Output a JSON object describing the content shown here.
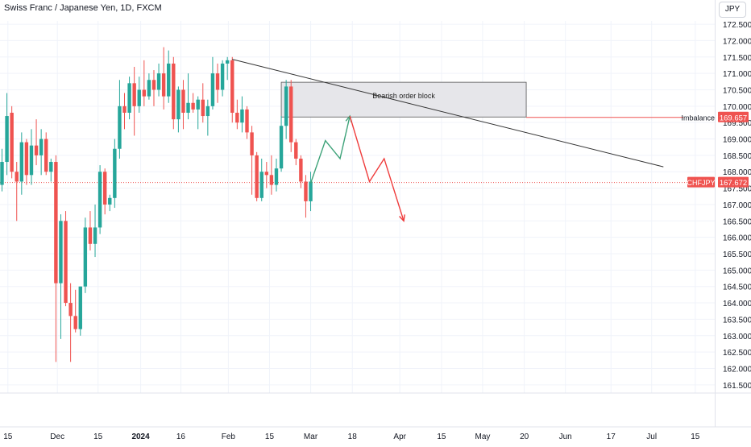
{
  "header": {
    "title": "Swiss Franc / Japanese Yen, 1D, FXCM",
    "unit": "JPY"
  },
  "colors": {
    "up": "#26a69a",
    "down": "#ef5350",
    "grid": "#f0f3fa",
    "axis_text": "#131722",
    "projection_up": "#3fa37a",
    "projection_down": "#ef3b3b",
    "trendline": "#333333",
    "box_fill": "#e6e6ea"
  },
  "chart_data": {
    "type": "candlestick",
    "title": "Swiss Franc / Japanese Yen, 1D, FXCM",
    "symbol": "CHFJPY",
    "y_ticks": [
      "161.500",
      "162.000",
      "162.500",
      "163.000",
      "163.500",
      "164.000",
      "164.500",
      "165.000",
      "165.500",
      "166.000",
      "166.500",
      "167.000",
      "167.500",
      "168.000",
      "168.500",
      "169.000",
      "169.500",
      "170.000",
      "170.500",
      "171.000",
      "171.500",
      "172.000",
      "172.500"
    ],
    "x_ticks": [
      "15",
      "Dec",
      "15",
      "2024",
      "16",
      "Feb",
      "15",
      "Mar",
      "18",
      "Apr",
      "15",
      "May",
      "20",
      "Jun",
      "17",
      "Jul",
      "15"
    ],
    "ylim": [
      161.25,
      172.6
    ],
    "candles": [
      {
        "o": 167.6,
        "h": 168.7,
        "l": 167.4,
        "c": 168.3
      },
      {
        "o": 168.3,
        "h": 170.4,
        "l": 167.9,
        "c": 169.7
      },
      {
        "o": 169.8,
        "h": 170.0,
        "l": 167.8,
        "c": 168.0
      },
      {
        "o": 168.0,
        "h": 168.3,
        "l": 166.5,
        "c": 167.7
      },
      {
        "o": 167.7,
        "h": 169.2,
        "l": 167.3,
        "c": 168.9
      },
      {
        "o": 168.9,
        "h": 169.0,
        "l": 167.6,
        "c": 167.9
      },
      {
        "o": 167.9,
        "h": 169.3,
        "l": 167.6,
        "c": 168.8
      },
      {
        "o": 168.8,
        "h": 169.6,
        "l": 168.2,
        "c": 168.5
      },
      {
        "o": 168.5,
        "h": 169.3,
        "l": 167.9,
        "c": 169.0
      },
      {
        "o": 169.0,
        "h": 169.2,
        "l": 167.9,
        "c": 168.0
      },
      {
        "o": 168.0,
        "h": 168.4,
        "l": 167.7,
        "c": 168.3
      },
      {
        "o": 168.3,
        "h": 168.5,
        "l": 162.2,
        "c": 164.6
      },
      {
        "o": 164.6,
        "h": 166.7,
        "l": 162.9,
        "c": 166.5
      },
      {
        "o": 166.5,
        "h": 166.8,
        "l": 163.9,
        "c": 164.0
      },
      {
        "o": 164.0,
        "h": 164.6,
        "l": 162.2,
        "c": 163.6
      },
      {
        "o": 163.6,
        "h": 164.4,
        "l": 163.1,
        "c": 163.2
      },
      {
        "o": 163.2,
        "h": 164.5,
        "l": 163.0,
        "c": 164.5
      },
      {
        "o": 164.5,
        "h": 166.6,
        "l": 164.3,
        "c": 166.3
      },
      {
        "o": 166.3,
        "h": 166.8,
        "l": 165.6,
        "c": 165.8
      },
      {
        "o": 165.8,
        "h": 167.0,
        "l": 165.4,
        "c": 166.3
      },
      {
        "o": 166.3,
        "h": 168.2,
        "l": 166.1,
        "c": 168.0
      },
      {
        "o": 168.0,
        "h": 168.1,
        "l": 166.7,
        "c": 167.0
      },
      {
        "o": 167.0,
        "h": 167.3,
        "l": 166.8,
        "c": 167.2
      },
      {
        "o": 167.2,
        "h": 169.0,
        "l": 166.9,
        "c": 168.7
      },
      {
        "o": 168.7,
        "h": 170.8,
        "l": 168.4,
        "c": 170.0
      },
      {
        "o": 170.0,
        "h": 170.4,
        "l": 169.3,
        "c": 169.8
      },
      {
        "o": 169.8,
        "h": 170.9,
        "l": 169.6,
        "c": 170.7
      },
      {
        "o": 170.7,
        "h": 171.2,
        "l": 169.1,
        "c": 170.0
      },
      {
        "o": 170.0,
        "h": 170.9,
        "l": 169.8,
        "c": 170.5
      },
      {
        "o": 170.5,
        "h": 171.4,
        "l": 170.0,
        "c": 170.3
      },
      {
        "o": 170.3,
        "h": 171.0,
        "l": 170.2,
        "c": 170.8
      },
      {
        "o": 170.8,
        "h": 171.1,
        "l": 170.0,
        "c": 170.5
      },
      {
        "o": 170.5,
        "h": 171.3,
        "l": 170.3,
        "c": 171.0
      },
      {
        "o": 171.0,
        "h": 171.8,
        "l": 169.9,
        "c": 170.3
      },
      {
        "o": 170.3,
        "h": 171.7,
        "l": 170.1,
        "c": 171.3
      },
      {
        "o": 171.3,
        "h": 171.5,
        "l": 169.3,
        "c": 169.6
      },
      {
        "o": 169.6,
        "h": 170.6,
        "l": 169.2,
        "c": 170.5
      },
      {
        "o": 170.5,
        "h": 170.8,
        "l": 169.3,
        "c": 169.8
      },
      {
        "o": 169.8,
        "h": 171.0,
        "l": 169.6,
        "c": 170.1
      },
      {
        "o": 170.1,
        "h": 170.4,
        "l": 169.8,
        "c": 169.9
      },
      {
        "o": 169.9,
        "h": 170.3,
        "l": 169.3,
        "c": 170.2
      },
      {
        "o": 170.2,
        "h": 170.7,
        "l": 169.5,
        "c": 169.7
      },
      {
        "o": 169.7,
        "h": 170.2,
        "l": 169.1,
        "c": 170.0
      },
      {
        "o": 170.0,
        "h": 171.5,
        "l": 169.9,
        "c": 171.0
      },
      {
        "o": 171.0,
        "h": 171.3,
        "l": 170.1,
        "c": 170.5
      },
      {
        "o": 170.5,
        "h": 171.4,
        "l": 170.3,
        "c": 171.3
      },
      {
        "o": 171.3,
        "h": 171.5,
        "l": 170.8,
        "c": 171.4
      },
      {
        "o": 171.4,
        "h": 171.5,
        "l": 169.5,
        "c": 169.8
      },
      {
        "o": 169.8,
        "h": 170.2,
        "l": 169.3,
        "c": 169.5
      },
      {
        "o": 169.5,
        "h": 170.3,
        "l": 169.2,
        "c": 169.9
      },
      {
        "o": 169.9,
        "h": 170.0,
        "l": 169.0,
        "c": 169.2
      },
      {
        "o": 169.2,
        "h": 169.4,
        "l": 167.3,
        "c": 168.5
      },
      {
        "o": 168.5,
        "h": 168.6,
        "l": 167.1,
        "c": 167.2
      },
      {
        "o": 167.2,
        "h": 168.4,
        "l": 167.1,
        "c": 168.0
      },
      {
        "o": 168.0,
        "h": 168.3,
        "l": 167.5,
        "c": 167.9
      },
      {
        "o": 167.9,
        "h": 168.5,
        "l": 167.3,
        "c": 167.6
      },
      {
        "o": 167.6,
        "h": 168.4,
        "l": 167.4,
        "c": 168.1
      },
      {
        "o": 168.1,
        "h": 169.7,
        "l": 168.0,
        "c": 169.4
      },
      {
        "o": 169.4,
        "h": 170.8,
        "l": 169.0,
        "c": 170.6
      },
      {
        "o": 170.6,
        "h": 170.8,
        "l": 168.6,
        "c": 168.9
      },
      {
        "o": 168.9,
        "h": 169.0,
        "l": 168.2,
        "c": 168.4
      },
      {
        "o": 168.4,
        "h": 168.5,
        "l": 167.5,
        "c": 167.7
      },
      {
        "o": 167.7,
        "h": 167.9,
        "l": 166.6,
        "c": 167.1
      },
      {
        "o": 167.1,
        "h": 168.0,
        "l": 166.8,
        "c": 167.7
      }
    ],
    "hline_price": 167.672,
    "trendline": {
      "from_index": 47,
      "from_price": 171.43,
      "to_index": 135,
      "to_price": 168.15
    },
    "order_block": {
      "label": "Bearish order block",
      "start_index": 57,
      "end_index": 107,
      "top": 170.73,
      "bottom": 169.67
    },
    "imbalance": {
      "label": "Imbalance",
      "price": 169.657
    },
    "price_tag": {
      "symbol": "CHFJPY",
      "value": "167.672"
    },
    "imbalance_tag": "169.657",
    "projection_up": [
      [
        63,
        167.65
      ],
      [
        66,
        168.95
      ],
      [
        69,
        168.4
      ],
      [
        71,
        169.7
      ]
    ],
    "projection_down": [
      [
        71,
        169.7
      ],
      [
        75,
        167.7
      ],
      [
        78,
        168.4
      ],
      [
        82,
        166.5
      ]
    ]
  }
}
